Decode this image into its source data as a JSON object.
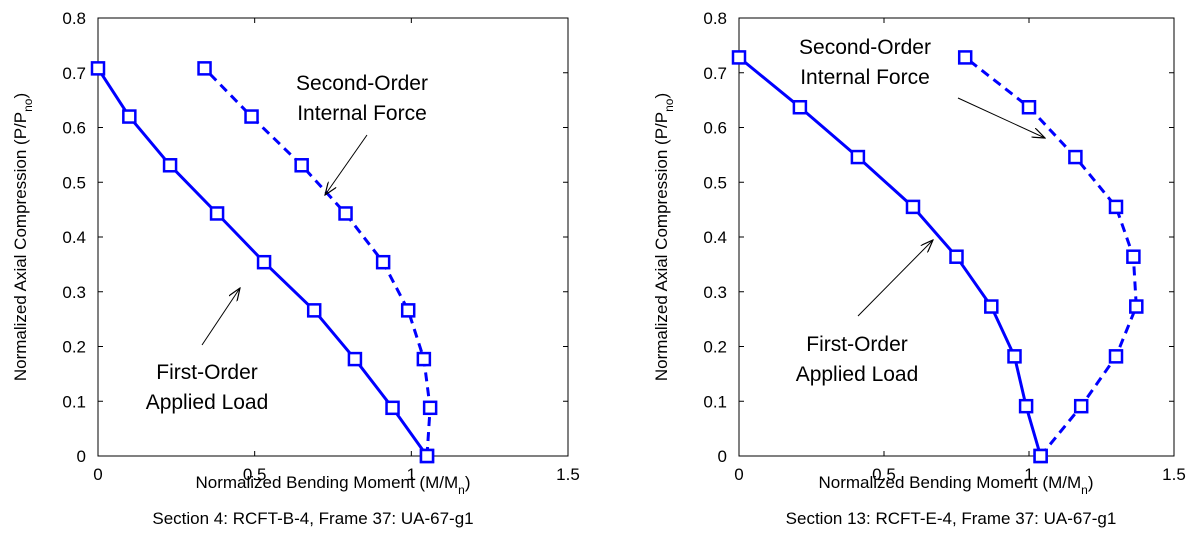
{
  "chart_data": [
    {
      "type": "line",
      "caption": "Section 4: RCFT-B-4, Frame 37: UA-67-g1",
      "xlabel": {
        "main": "Normalized Bending Moment (M/M",
        "sub": "n",
        "close": ")"
      },
      "ylabel": {
        "main": "Normalized Axial Compression (P/P",
        "sub": "no",
        "close": ")"
      },
      "xlim": [
        0,
        1.5
      ],
      "ylim": [
        0,
        0.8
      ],
      "xticks": [
        "0",
        "0.5",
        "1",
        "1.5"
      ],
      "yticks": [
        "0",
        "0.1",
        "0.2",
        "0.3",
        "0.4",
        "0.5",
        "0.6",
        "0.7",
        "0.8"
      ],
      "series": [
        {
          "style": "solid",
          "color": "#0000ff",
          "x": [
            1.05,
            0.94,
            0.82,
            0.69,
            0.53,
            0.38,
            0.23,
            0.1,
            0
          ],
          "y": [
            0,
            0.088,
            0.177,
            0.266,
            0.354,
            0.443,
            0.531,
            0.62,
            0.708
          ]
        },
        {
          "style": "dashed",
          "color": "#0000ff",
          "x": [
            1.05,
            1.06,
            1.04,
            0.99,
            0.91,
            0.79,
            0.65,
            0.49,
            0.34
          ],
          "y": [
            0,
            0.088,
            0.177,
            0.266,
            0.354,
            0.443,
            0.531,
            0.62,
            0.708
          ]
        }
      ],
      "annotations": [
        {
          "lines": [
            "Second-Order",
            "Internal Force"
          ],
          "anchor": "upper",
          "arrow_from": [
            0.9,
            0.585
          ],
          "arrow_to": [
            0.77,
            0.475
          ]
        },
        {
          "lines": [
            "First-Order",
            "Applied Load"
          ],
          "anchor": "lower",
          "arrow_from": [
            0.45,
            0.24
          ],
          "arrow_to": [
            0.57,
            0.32
          ]
        }
      ]
    },
    {
      "type": "line",
      "caption": "Section 13: RCFT-E-4, Frame 37: UA-67-g1",
      "xlabel": {
        "main": "Normalized Bending Moment (M/M",
        "sub": "n",
        "close": ")"
      },
      "ylabel": {
        "main": "Normalized Axial Compression (P/P",
        "sub": "no",
        "close": ")"
      },
      "xlim": [
        0,
        1.5
      ],
      "ylim": [
        0,
        0.8
      ],
      "xticks": [
        "0",
        "0.5",
        "1",
        "1.5"
      ],
      "yticks": [
        "0",
        "0.1",
        "0.2",
        "0.3",
        "0.4",
        "0.5",
        "0.6",
        "0.7",
        "0.8"
      ],
      "series": [
        {
          "style": "solid",
          "color": "#0000ff",
          "x": [
            1.04,
            0.99,
            0.95,
            0.87,
            0.75,
            0.6,
            0.41,
            0.21,
            0
          ],
          "y": [
            0,
            0.091,
            0.182,
            0.273,
            0.364,
            0.455,
            0.546,
            0.637,
            0.728
          ]
        },
        {
          "style": "dashed",
          "color": "#0000ff",
          "x": [
            1.04,
            1.18,
            1.3,
            1.37,
            1.36,
            1.3,
            1.16,
            1.0,
            0.78
          ],
          "y": [
            0,
            0.091,
            0.182,
            0.273,
            0.364,
            0.455,
            0.546,
            0.637,
            0.728
          ]
        }
      ],
      "annotations": [
        {
          "lines": [
            "Second-Order",
            "Internal Force"
          ],
          "anchor": "upper",
          "arrow_from": [
            0.76,
            0.655
          ],
          "arrow_to": [
            0.98,
            0.585
          ]
        },
        {
          "lines": [
            "First-Order",
            "Applied Load"
          ],
          "anchor": "lower",
          "arrow_from": [
            0.5,
            0.245
          ],
          "arrow_to": [
            0.68,
            0.4
          ]
        }
      ]
    }
  ],
  "annotation_text": {
    "left_upper": [
      "Second-Order",
      "Internal Force"
    ],
    "left_lower": [
      "First-Order",
      "Applied Load"
    ],
    "right_upper": [
      "Second-Order",
      "Internal Force"
    ],
    "right_lower": [
      "First-Order",
      "Applied Load"
    ]
  }
}
